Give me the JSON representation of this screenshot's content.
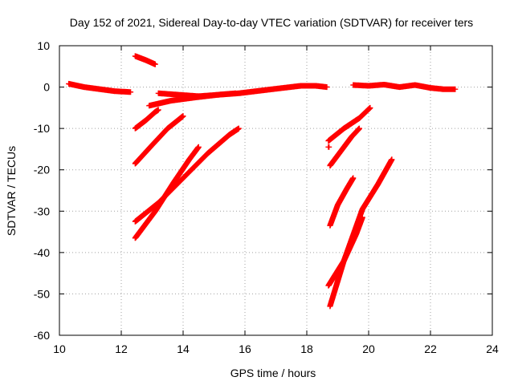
{
  "chart_data": {
    "type": "scatter",
    "title": "Day 152 of 2021, Sidereal Day-to-day VTEC variation (SDTVAR) for receiver ters",
    "xlabel": "GPS time / hours",
    "ylabel": "SDTVAR / TECUs",
    "xlim": [
      10,
      24
    ],
    "ylim": [
      -60,
      10
    ],
    "xticks": [
      "10",
      "12",
      "14",
      "16",
      "18",
      "20",
      "22",
      "24"
    ],
    "yticks": [
      "10",
      "0",
      "-10",
      "-20",
      "-30",
      "-40",
      "-50",
      "-60"
    ],
    "grid": true,
    "legend": "none",
    "marker": "+",
    "color": "#ff0000",
    "series": [
      {
        "x": [
          10.3,
          10.8,
          11.3,
          11.8,
          12.3
        ],
        "y": [
          0.8,
          0.0,
          -0.5,
          -1.0,
          -1.2
        ]
      },
      {
        "x": [
          12.45,
          12.8,
          13.1
        ],
        "y": [
          7.5,
          6.5,
          5.5
        ]
      },
      {
        "x": [
          13.2,
          14.5,
          15.8,
          16.9,
          17.8,
          18.3,
          18.65
        ],
        "y": [
          -1.5,
          -2.2,
          -1.5,
          -0.5,
          0.3,
          0.3,
          0.0
        ]
      },
      {
        "x": [
          12.9,
          13.6,
          14.4,
          15.2,
          15.7
        ],
        "y": [
          -4.5,
          -3.3,
          -2.5,
          -1.8,
          -1.5
        ]
      },
      {
        "x": [
          12.45,
          12.8,
          13.1,
          13.2
        ],
        "y": [
          -10,
          -8,
          -6,
          -5.5
        ]
      },
      {
        "x": [
          12.45,
          13.0,
          13.5,
          14.0
        ],
        "y": [
          -18.5,
          -14,
          -10,
          -7
        ]
      },
      {
        "x": [
          12.45,
          13.2,
          14.0,
          14.8,
          15.5,
          15.8
        ],
        "y": [
          -32.5,
          -28,
          -22,
          -16,
          -11.5,
          -10
        ]
      },
      {
        "x": [
          12.45,
          13.1,
          13.7,
          14.2,
          14.5
        ],
        "y": [
          -36.5,
          -30,
          -23,
          -17.5,
          -14.5
        ]
      },
      {
        "x": [
          18.7,
          19.2,
          19.7,
          20.05
        ],
        "y": [
          -13,
          -10,
          -7.5,
          -5
        ]
      },
      {
        "x": [
          18.7,
          18.72
        ],
        "y": [
          -14.5,
          -14.5
        ]
      },
      {
        "x": [
          18.75,
          19.1,
          19.45,
          19.7
        ],
        "y": [
          -19,
          -15.5,
          -12,
          -10
        ]
      },
      {
        "x": [
          18.75,
          19.0,
          19.3,
          19.5
        ],
        "y": [
          -33.5,
          -28.5,
          -24.5,
          -22
        ]
      },
      {
        "x": [
          18.7,
          19.2,
          19.6,
          19.8
        ],
        "y": [
          -48,
          -42,
          -35.5,
          -31.5
        ]
      },
      {
        "x": [
          18.75,
          19.2,
          19.8,
          20.3,
          20.75
        ],
        "y": [
          -53,
          -42,
          -29.5,
          -23.5,
          -17.5
        ]
      },
      {
        "x": [
          19.5,
          20.0,
          20.5,
          21.0,
          21.5,
          22.0,
          22.4,
          22.8
        ],
        "y": [
          0.5,
          0.3,
          0.6,
          0.0,
          0.5,
          -0.2,
          -0.5,
          -0.5
        ]
      }
    ]
  }
}
